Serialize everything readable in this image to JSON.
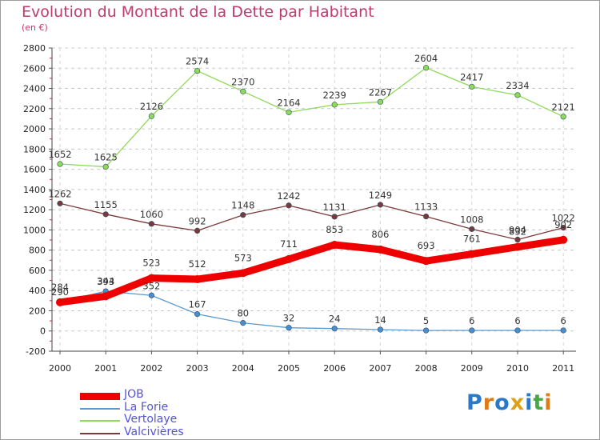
{
  "title": "Evolution du Montant de la Dette par Habitant",
  "subtitle": "(en €)",
  "logo": {
    "text": "Proxiti"
  },
  "chart_data": {
    "type": "line",
    "categories": [
      "2000",
      "2001",
      "2002",
      "2003",
      "2004",
      "2005",
      "2006",
      "2007",
      "2008",
      "2009",
      "2010",
      "2011"
    ],
    "ylim": [
      -200,
      2800
    ],
    "y_ticks": [
      -200,
      0,
      200,
      400,
      600,
      800,
      1000,
      1200,
      1400,
      1600,
      1800,
      2000,
      2200,
      2400,
      2600,
      2800
    ],
    "grid": "horizontal-dashed",
    "legend_position": "bottom-left",
    "series": [
      {
        "name": "JOB",
        "color": "#ee0000",
        "values": [
          284,
          344,
          523,
          512,
          573,
          711,
          853,
          806,
          693,
          761,
          832,
          902
        ]
      },
      {
        "name": "La Forie",
        "color": "#5b9ad0",
        "values": [
          290,
          393,
          352,
          167,
          80,
          32,
          24,
          14,
          5,
          6,
          6,
          6
        ]
      },
      {
        "name": "Vertolaye",
        "color": "#8fda5a",
        "values": [
          1652,
          1625,
          2126,
          2574,
          2370,
          2164,
          2239,
          2267,
          2604,
          2417,
          2334,
          2121
        ]
      },
      {
        "name": "Valcivières",
        "color": "#7a3a3a",
        "values": [
          1262,
          1155,
          1060,
          992,
          1148,
          1242,
          1131,
          1249,
          1133,
          1008,
          904,
          1022
        ]
      }
    ]
  }
}
